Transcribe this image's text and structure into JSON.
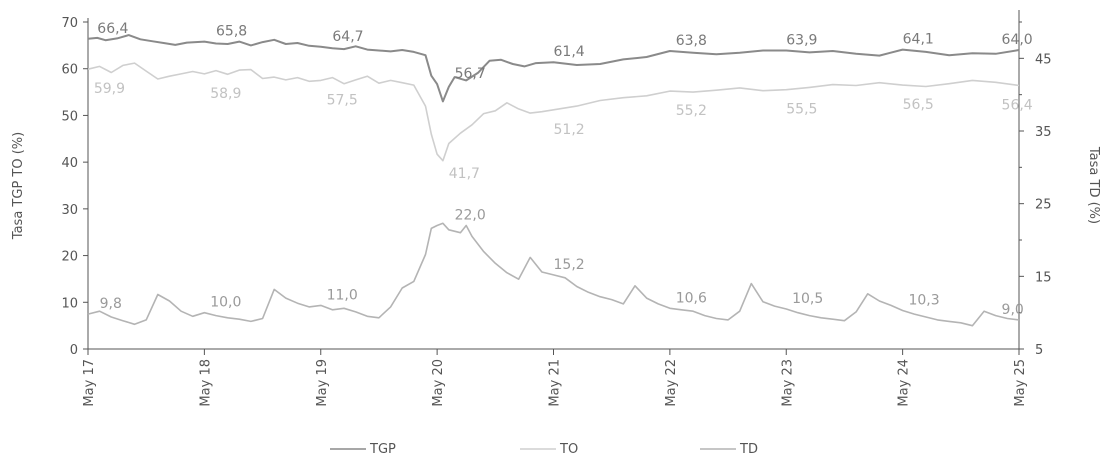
{
  "chart_data": {
    "type": "line",
    "x_categories": [
      "May 17",
      "May 18",
      "May 19",
      "May 20",
      "May 21",
      "May 22",
      "May 23",
      "May 24",
      "May 25"
    ],
    "y_left": {
      "label": "Tasa TGP TO (%)",
      "min": 0,
      "max": 70,
      "ticks": [
        0,
        10,
        20,
        30,
        40,
        50,
        60,
        70
      ]
    },
    "y_right": {
      "label": "Tasa TD (%)",
      "min": 5,
      "max": 50,
      "ticks": [
        5,
        15,
        25,
        35,
        45
      ]
    },
    "legend": {
      "position": "bottom",
      "entries": [
        "TGP",
        "TO",
        "TD"
      ]
    },
    "grid": false,
    "series": [
      {
        "name": "TGP",
        "axis": "left",
        "color": "#8a8a8a",
        "x": [
          0,
          0.08,
          0.15,
          0.25,
          0.35,
          0.45,
          0.55,
          0.65,
          0.75,
          0.85,
          1.0,
          1.1,
          1.2,
          1.3,
          1.4,
          1.5,
          1.6,
          1.7,
          1.8,
          1.9,
          2.0,
          2.1,
          2.2,
          2.3,
          2.4,
          2.5,
          2.6,
          2.7,
          2.8,
          2.9,
          2.95,
          3.0,
          3.05,
          3.1,
          3.15,
          3.25,
          3.35,
          3.45,
          3.55,
          3.65,
          3.75,
          3.85,
          4.0,
          4.2,
          4.4,
          4.6,
          4.8,
          5.0,
          5.2,
          5.4,
          5.6,
          5.8,
          6.0,
          6.2,
          6.4,
          6.6,
          6.8,
          7.0,
          7.2,
          7.4,
          7.6,
          7.8,
          8.0
        ],
        "values": [
          66.4,
          66.6,
          66.1,
          66.5,
          67.2,
          66.3,
          65.9,
          65.5,
          65.1,
          65.6,
          65.8,
          65.4,
          65.3,
          65.8,
          65.0,
          65.7,
          66.2,
          65.3,
          65.5,
          64.9,
          64.7,
          64.4,
          64.2,
          64.8,
          64.1,
          63.9,
          63.7,
          64.0,
          63.6,
          62.9,
          58.5,
          56.7,
          53.0,
          56.1,
          58.2,
          57.5,
          59.1,
          61.7,
          61.9,
          61.0,
          60.5,
          61.2,
          61.4,
          60.8,
          61.0,
          62.0,
          62.5,
          63.8,
          63.4,
          63.1,
          63.4,
          63.9,
          63.9,
          63.5,
          63.8,
          63.2,
          62.8,
          64.1,
          63.6,
          62.9,
          63.3,
          63.2,
          64.0
        ]
      },
      {
        "name": "TO",
        "axis": "left",
        "color": "#cfcfcf",
        "x": [
          0,
          0.1,
          0.2,
          0.3,
          0.4,
          0.5,
          0.6,
          0.7,
          0.8,
          0.9,
          1.0,
          1.1,
          1.2,
          1.3,
          1.4,
          1.5,
          1.6,
          1.7,
          1.8,
          1.9,
          2.0,
          2.1,
          2.2,
          2.3,
          2.4,
          2.5,
          2.6,
          2.7,
          2.8,
          2.9,
          2.95,
          3.0,
          3.05,
          3.1,
          3.2,
          3.3,
          3.4,
          3.5,
          3.6,
          3.7,
          3.8,
          3.9,
          4.0,
          4.2,
          4.4,
          4.6,
          4.8,
          5.0,
          5.2,
          5.4,
          5.6,
          5.8,
          6.0,
          6.2,
          6.4,
          6.6,
          6.8,
          7.0,
          7.2,
          7.4,
          7.6,
          7.8,
          8.0
        ],
        "values": [
          59.9,
          60.5,
          59.2,
          60.7,
          61.2,
          59.5,
          57.8,
          58.4,
          58.9,
          59.4,
          58.9,
          59.6,
          58.8,
          59.7,
          59.8,
          57.9,
          58.2,
          57.6,
          58.1,
          57.3,
          57.5,
          58.1,
          56.8,
          57.6,
          58.4,
          56.9,
          57.5,
          57.0,
          56.5,
          52.0,
          46.0,
          41.7,
          40.3,
          44.0,
          46.2,
          48.0,
          50.4,
          51.0,
          52.7,
          51.4,
          50.5,
          50.8,
          51.2,
          52.0,
          53.2,
          53.8,
          54.2,
          55.2,
          55.0,
          55.4,
          55.9,
          55.3,
          55.5,
          56.0,
          56.6,
          56.4,
          57.0,
          56.5,
          56.2,
          56.8,
          57.5,
          57.1,
          56.4
        ]
      },
      {
        "name": "TD",
        "axis": "right",
        "color": "#b4b4b4",
        "x": [
          0,
          0.1,
          0.2,
          0.3,
          0.4,
          0.5,
          0.6,
          0.7,
          0.8,
          0.9,
          1.0,
          1.1,
          1.2,
          1.3,
          1.4,
          1.5,
          1.6,
          1.7,
          1.8,
          1.9,
          2.0,
          2.1,
          2.2,
          2.3,
          2.4,
          2.5,
          2.6,
          2.7,
          2.8,
          2.9,
          2.95,
          3.0,
          3.05,
          3.1,
          3.2,
          3.25,
          3.3,
          3.4,
          3.5,
          3.6,
          3.7,
          3.8,
          3.9,
          4.0,
          4.1,
          4.2,
          4.3,
          4.4,
          4.5,
          4.6,
          4.7,
          4.8,
          4.9,
          5.0,
          5.1,
          5.2,
          5.3,
          5.4,
          5.5,
          5.6,
          5.7,
          5.8,
          5.9,
          6.0,
          6.1,
          6.2,
          6.3,
          6.4,
          6.5,
          6.6,
          6.7,
          6.8,
          6.9,
          7.0,
          7.1,
          7.2,
          7.3,
          7.4,
          7.5,
          7.6,
          7.7,
          7.8,
          7.9,
          8.0
        ],
        "values": [
          9.8,
          10.2,
          9.4,
          8.9,
          8.4,
          9.0,
          12.5,
          11.6,
          10.2,
          9.5,
          10.0,
          9.6,
          9.3,
          9.1,
          8.8,
          9.2,
          13.2,
          12.0,
          11.3,
          10.8,
          11.0,
          10.4,
          10.6,
          10.1,
          9.5,
          9.3,
          10.8,
          13.4,
          14.3,
          18.0,
          21.6,
          22.0,
          22.3,
          21.4,
          21.0,
          22.0,
          20.5,
          18.4,
          16.8,
          15.5,
          14.6,
          17.6,
          15.6,
          15.2,
          14.8,
          13.6,
          12.8,
          12.2,
          11.8,
          11.2,
          13.7,
          12.0,
          11.2,
          10.6,
          10.4,
          10.2,
          9.6,
          9.2,
          9.0,
          10.2,
          14.0,
          11.5,
          10.9,
          10.5,
          10.0,
          9.6,
          9.3,
          9.1,
          8.9,
          10.1,
          12.6,
          11.6,
          11.0,
          10.3,
          9.8,
          9.4,
          9.0,
          8.8,
          8.6,
          8.2,
          10.2,
          9.6,
          9.2,
          9.0
        ]
      }
    ],
    "annotations": [
      {
        "series": "TGP",
        "x": 0.08,
        "y": 66.4,
        "text": "66,4"
      },
      {
        "series": "TGP",
        "x": 1.1,
        "y": 65.8,
        "text": "65,8"
      },
      {
        "series": "TGP",
        "x": 2.1,
        "y": 64.7,
        "text": "64,7"
      },
      {
        "series": "TGP",
        "x": 3.15,
        "y": 56.7,
        "text": "56,7"
      },
      {
        "series": "TGP",
        "x": 4.0,
        "y": 61.4,
        "text": "61,4"
      },
      {
        "series": "TGP",
        "x": 5.05,
        "y": 63.8,
        "text": "63,8"
      },
      {
        "series": "TGP",
        "x": 6.0,
        "y": 63.9,
        "text": "63,9"
      },
      {
        "series": "TGP",
        "x": 7.0,
        "y": 64.1,
        "text": "64,1"
      },
      {
        "series": "TGP",
        "x": 7.85,
        "y": 64.0,
        "text": "64,0"
      },
      {
        "series": "TO",
        "x": 0.05,
        "y": 59.9,
        "text": "59,9"
      },
      {
        "series": "TO",
        "x": 1.05,
        "y": 58.9,
        "text": "58,9"
      },
      {
        "series": "TO",
        "x": 2.05,
        "y": 57.5,
        "text": "57,5"
      },
      {
        "series": "TO",
        "x": 3.1,
        "y": 41.7,
        "text": "41,7"
      },
      {
        "series": "TO",
        "x": 4.0,
        "y": 51.2,
        "text": "51,2"
      },
      {
        "series": "TO",
        "x": 5.05,
        "y": 55.2,
        "text": "55,2"
      },
      {
        "series": "TO",
        "x": 6.0,
        "y": 55.5,
        "text": "55,5"
      },
      {
        "series": "TO",
        "x": 7.0,
        "y": 56.5,
        "text": "56,5"
      },
      {
        "series": "TO",
        "x": 7.85,
        "y": 56.4,
        "text": "56,4"
      },
      {
        "series": "TD",
        "x": 0.1,
        "y": 9.8,
        "text": "9,8"
      },
      {
        "series": "TD",
        "x": 1.05,
        "y": 10.0,
        "text": "10,0"
      },
      {
        "series": "TD",
        "x": 2.05,
        "y": 11.0,
        "text": "11,0"
      },
      {
        "series": "TD",
        "x": 3.15,
        "y": 22.0,
        "text": "22,0"
      },
      {
        "series": "TD",
        "x": 4.0,
        "y": 15.2,
        "text": "15,2"
      },
      {
        "series": "TD",
        "x": 5.05,
        "y": 10.6,
        "text": "10,6"
      },
      {
        "series": "TD",
        "x": 6.05,
        "y": 10.5,
        "text": "10,5"
      },
      {
        "series": "TD",
        "x": 7.05,
        "y": 10.3,
        "text": "10,3"
      },
      {
        "series": "TD",
        "x": 7.85,
        "y": 9.0,
        "text": "9,0"
      }
    ]
  }
}
